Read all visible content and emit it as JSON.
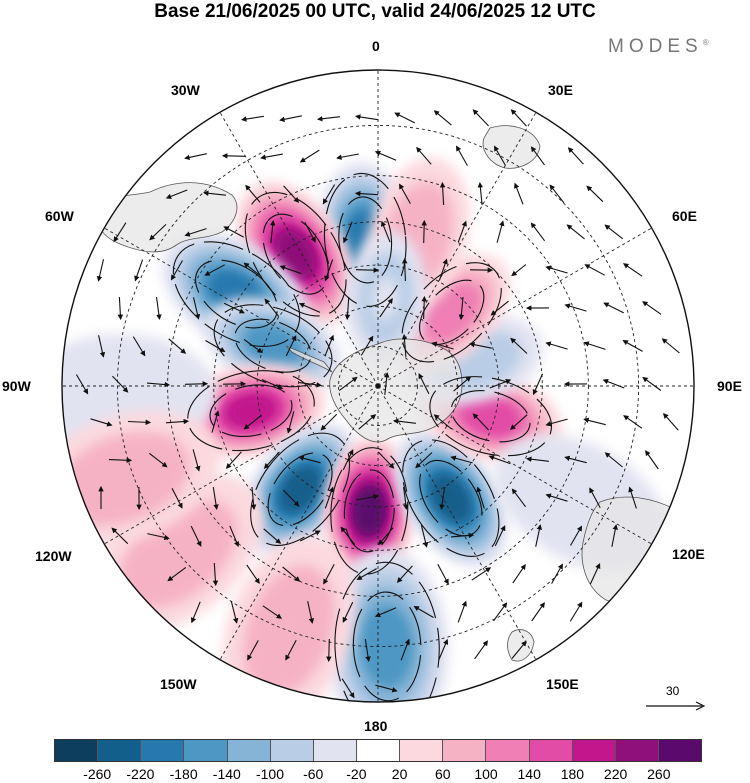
{
  "title": "Base 21/06/2025 00 UTC, valid 24/06/2025 12 UTC",
  "brand": "MODES",
  "brand_mark": "®",
  "longitude_labels": {
    "n0": "0",
    "n30e": "30E",
    "n60e": "60E",
    "n90e": "90E",
    "n120e": "120E",
    "n150e": "150E",
    "n180": "180",
    "n150w": "150W",
    "n120w": "120W",
    "n90w": "90W",
    "n60w": "60W",
    "n30w": "30W"
  },
  "reference_vector": "30",
  "colorbar": {
    "ticks": [
      "-260",
      "-220",
      "-180",
      "-140",
      "-100",
      "-60",
      "-20",
      "20",
      "60",
      "100",
      "140",
      "180",
      "220",
      "260"
    ],
    "colors": [
      "#0d3e5e",
      "#125f8b",
      "#2778ad",
      "#4d97c4",
      "#86b4d6",
      "#b9cde6",
      "#e2e3f1",
      "#ffffff",
      "#fbd9df",
      "#f6b2c5",
      "#ef7fb4",
      "#e24ca6",
      "#c2168d",
      "#8f1079",
      "#5a0a6c"
    ]
  },
  "map": {
    "projection": "south-polar-stereographic",
    "field_colors": {
      "land": "#e8e8e8",
      "coast": "#4a4a4a",
      "grid": "#222222",
      "arrow": "#111111",
      "contour": "#111111"
    },
    "anomalies": [
      {
        "lon": 355,
        "lat": -54,
        "value": -200
      },
      {
        "lon": 328,
        "lat": -52,
        "value": 240
      },
      {
        "lon": 303,
        "lat": -49,
        "value": -210
      },
      {
        "lon": 291,
        "lat": -62,
        "value": -150
      },
      {
        "lon": 259,
        "lat": -58,
        "value": 210
      },
      {
        "lon": 268,
        "lat": -30,
        "value": -40
      },
      {
        "lon": 217,
        "lat": -58,
        "value": -250
      },
      {
        "lon": 184,
        "lat": -59,
        "value": 260
      },
      {
        "lon": 147,
        "lat": -57,
        "value": -240
      },
      {
        "lon": 105,
        "lat": -61,
        "value": 140
      },
      {
        "lon": 75,
        "lat": -65,
        "value": -90
      },
      {
        "lon": 45,
        "lat": -64,
        "value": 130
      },
      {
        "lon": 15,
        "lat": -52,
        "value": 60
      },
      {
        "lon": 5,
        "lat": -68,
        "value": -60
      },
      {
        "lon": 178,
        "lat": -30,
        "value": -160
      },
      {
        "lon": 230,
        "lat": -30,
        "value": 60
      },
      {
        "lon": 120,
        "lat": -35,
        "value": -40
      },
      {
        "lon": 200,
        "lat": -30,
        "value": 60
      },
      {
        "lon": 250,
        "lat": -28,
        "value": 60
      }
    ]
  }
}
